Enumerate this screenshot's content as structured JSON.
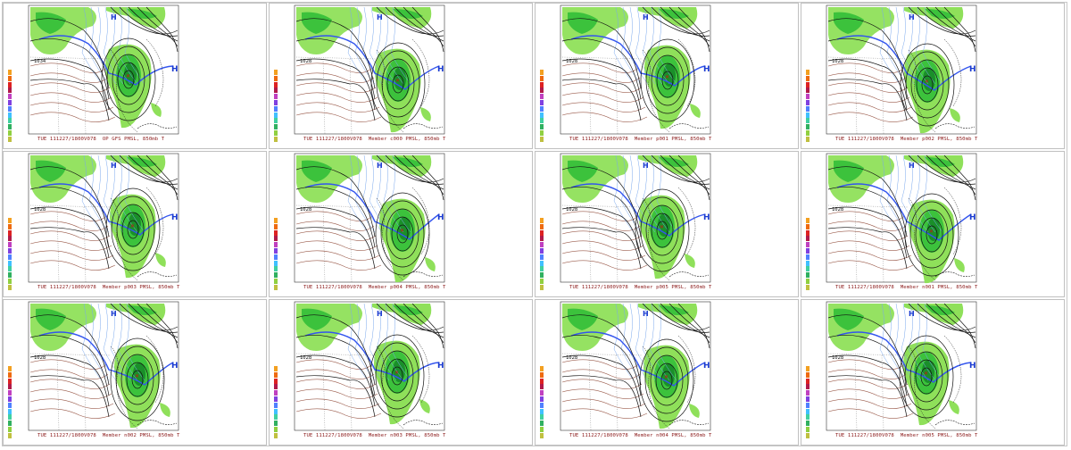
{
  "panels": [
    {
      "valid": "TUE 111227/1800V078",
      "member": "OP GFS",
      "fields": "PMSL, 850mb T",
      "cold_label": "1034"
    },
    {
      "valid": "TUE 111227/1800V078",
      "member": "Member c000",
      "fields": "PMSL, 850mb T",
      "cold_label": "1028"
    },
    {
      "valid": "TUE 111227/1800V078",
      "member": "Member p001",
      "fields": "PMSL, 850mb T",
      "cold_label": "1028"
    },
    {
      "valid": "TUE 111227/1800V078",
      "member": "Member p002",
      "fields": "PMSL, 850mb T",
      "cold_label": "1028"
    },
    {
      "valid": "TUE 111227/1800V078",
      "member": "Member p003",
      "fields": "PMSL, 850mb T",
      "cold_label": "1028"
    },
    {
      "valid": "TUE 111227/1800V078",
      "member": "Member p004",
      "fields": "PMSL, 850mb T",
      "cold_label": "1028"
    },
    {
      "valid": "TUE 111227/1800V078",
      "member": "Member p005",
      "fields": "PMSL, 850mb T",
      "cold_label": "1028"
    },
    {
      "valid": "TUE 111227/1800V078",
      "member": "Member n001",
      "fields": "PMSL, 850mb T",
      "cold_label": "1028"
    },
    {
      "valid": "TUE 111227/1800V078",
      "member": "Member n002",
      "fields": "PMSL, 850mb T",
      "cold_label": "1028"
    },
    {
      "valid": "TUE 111227/1800V078",
      "member": "Member n003",
      "fields": "PMSL, 850mb T",
      "cold_label": "1028"
    },
    {
      "valid": "TUE 111227/1800V078",
      "member": "Member n004",
      "fields": "PMSL, 850mb T",
      "cold_label": "1028"
    },
    {
      "valid": "TUE 111227/1800V078",
      "member": "Member n005",
      "fields": "PMSL, 850mb T",
      "cold_label": "1028"
    }
  ],
  "colors": {
    "precip_light": "#8fe05a",
    "precip_mid": "#3cc23c",
    "precip_dark": "#1a8f2a",
    "isobar": "#111111",
    "isotherm_cold": "#3355ee",
    "isotherm_warm": "#9a5a4a",
    "caption": "#8b1a1a"
  },
  "colorbar": [
    "#f3a020",
    "#ee6a10",
    "#dd2222",
    "#b01a4a",
    "#c040c0",
    "#8040e0",
    "#5080ff",
    "#40c0ff",
    "#40d0a0",
    "#30b060",
    "#90d040",
    "#c0c040"
  ]
}
